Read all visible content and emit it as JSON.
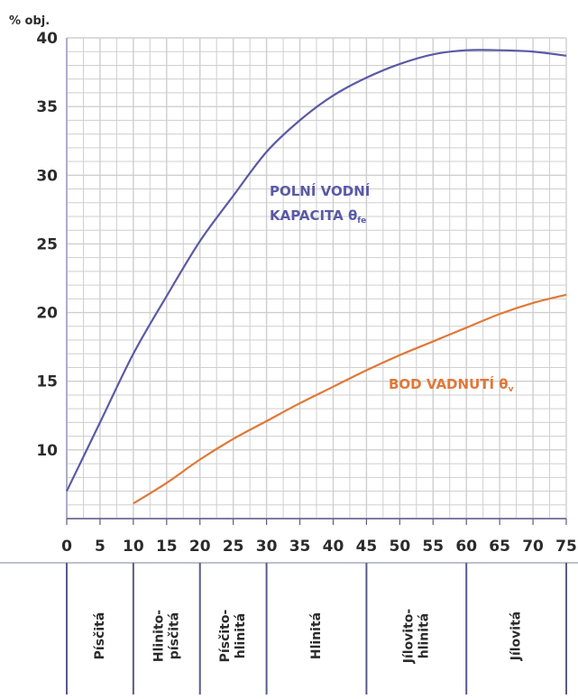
{
  "chart_data": {
    "type": "line",
    "ylabel": "% obj.",
    "ylim": [
      5,
      40
    ],
    "xlim": [
      0,
      75
    ],
    "x_ticks": [
      0,
      5,
      10,
      15,
      20,
      25,
      30,
      35,
      40,
      45,
      50,
      55,
      60,
      65,
      70,
      75
    ],
    "y_ticks": [
      10,
      15,
      20,
      25,
      30,
      35,
      40
    ],
    "grid": true,
    "series": [
      {
        "name": "POLNÍ VODNÍ KAPACITA θₙₑ",
        "label_lines": [
          "POLNÍ VODNÍ",
          "KAPACITA θ"
        ],
        "label_sub": "fe",
        "color": "#5a5aa6",
        "x": [
          0,
          5,
          10,
          15,
          20,
          25,
          30,
          35,
          40,
          45,
          50,
          55,
          60,
          65,
          70,
          75
        ],
        "y": [
          7.0,
          12.0,
          17.0,
          21.2,
          25.2,
          28.5,
          31.7,
          34.0,
          35.8,
          37.1,
          38.1,
          38.8,
          39.1,
          39.1,
          39.0,
          38.7
        ]
      },
      {
        "name": "BOD VADNUTÍ θᵥ",
        "label_lines": [
          "BOD VADNUTÍ θ"
        ],
        "label_sub": "v",
        "color": "#e07838",
        "x": [
          10,
          15,
          20,
          25,
          30,
          35,
          40,
          45,
          50,
          55,
          60,
          65,
          70,
          75
        ],
        "y": [
          6.1,
          7.6,
          9.3,
          10.8,
          12.1,
          13.4,
          14.6,
          15.8,
          16.9,
          17.9,
          18.9,
          19.9,
          20.7,
          21.3
        ]
      }
    ],
    "soil_classes": [
      {
        "from": 0,
        "to": 10,
        "lines": [
          "Písčitá"
        ]
      },
      {
        "from": 10,
        "to": 20,
        "lines": [
          "Hlinito-",
          "písčitá"
        ]
      },
      {
        "from": 20,
        "to": 30,
        "lines": [
          "Písčito-",
          "hlinitá"
        ]
      },
      {
        "from": 30,
        "to": 45,
        "lines": [
          "Hlinitá"
        ]
      },
      {
        "from": 45,
        "to": 60,
        "lines": [
          "Jílovito-",
          "hlinitá"
        ]
      },
      {
        "from": 60,
        "to": 75,
        "lines": [
          "Jílovitá"
        ]
      }
    ],
    "colors": {
      "grid": "#cfcfcf",
      "axis": "#5a5a8a",
      "text": "#2b2b2b"
    }
  }
}
